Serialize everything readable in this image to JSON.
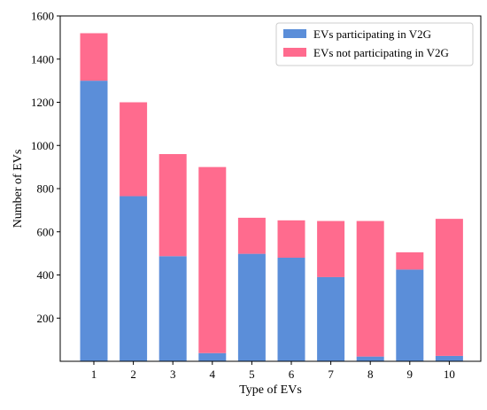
{
  "chart_data": {
    "type": "bar",
    "stacked": true,
    "categories": [
      "1",
      "2",
      "3",
      "4",
      "5",
      "6",
      "7",
      "8",
      "9",
      "10"
    ],
    "series": [
      {
        "name": "EVs participating in V2G",
        "values": [
          1300,
          765,
          487,
          38,
          498,
          480,
          390,
          22,
          425,
          25
        ]
      },
      {
        "name": "EVs not participating in V2G",
        "values": [
          220,
          435,
          473,
          862,
          167,
          173,
          260,
          628,
          80,
          635
        ]
      }
    ],
    "colors": [
      "#5b8ed9",
      "#ff6b8e"
    ],
    "xlabel": "Type of EVs",
    "ylabel": "Number of EVs",
    "ylim": [
      0,
      1600
    ],
    "yticks": [
      200,
      400,
      600,
      800,
      1000,
      1200,
      1400,
      1600
    ],
    "grid": false,
    "legend_position": "top-right"
  }
}
